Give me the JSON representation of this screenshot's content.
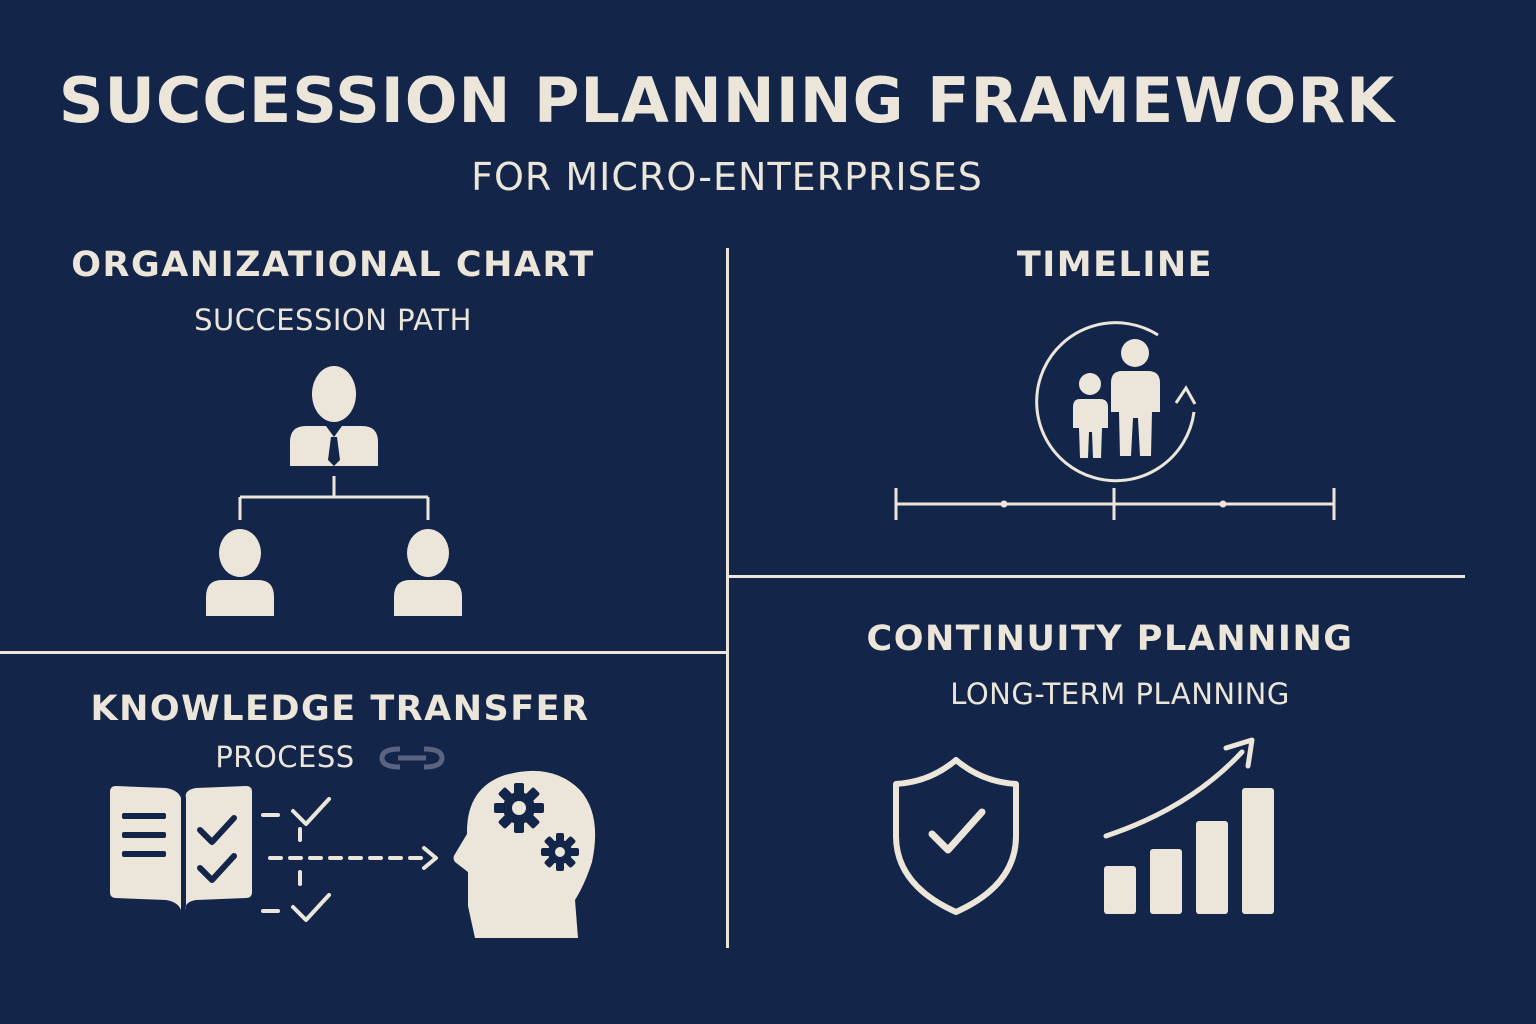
{
  "header": {
    "title": "SUCCESSION PLANNING FRAMEWORK",
    "subtitle": "FOR MICRO-ENTERPRISES"
  },
  "sections": {
    "org_chart": {
      "title": "ORGANIZATIONAL CHART",
      "subtitle": "SUCCESSION PATH"
    },
    "timeline": {
      "title": "TIMELINE"
    },
    "knowledge_transfer": {
      "title": "KNOWLEDGE TRANSFER",
      "subtitle": "PROCESS"
    },
    "continuity": {
      "title": "CONTINUITY PLANNING",
      "subtitle": "LONG-TERM PLANNING"
    }
  },
  "colors": {
    "background": "#13264a",
    "foreground": "#ece6da"
  },
  "icons": [
    "manager-icon",
    "successor-icon",
    "family-icon",
    "timeline-icon",
    "book-icon",
    "checklist-icon",
    "head-gears-icon",
    "shield-check-icon",
    "growth-chart-icon"
  ]
}
